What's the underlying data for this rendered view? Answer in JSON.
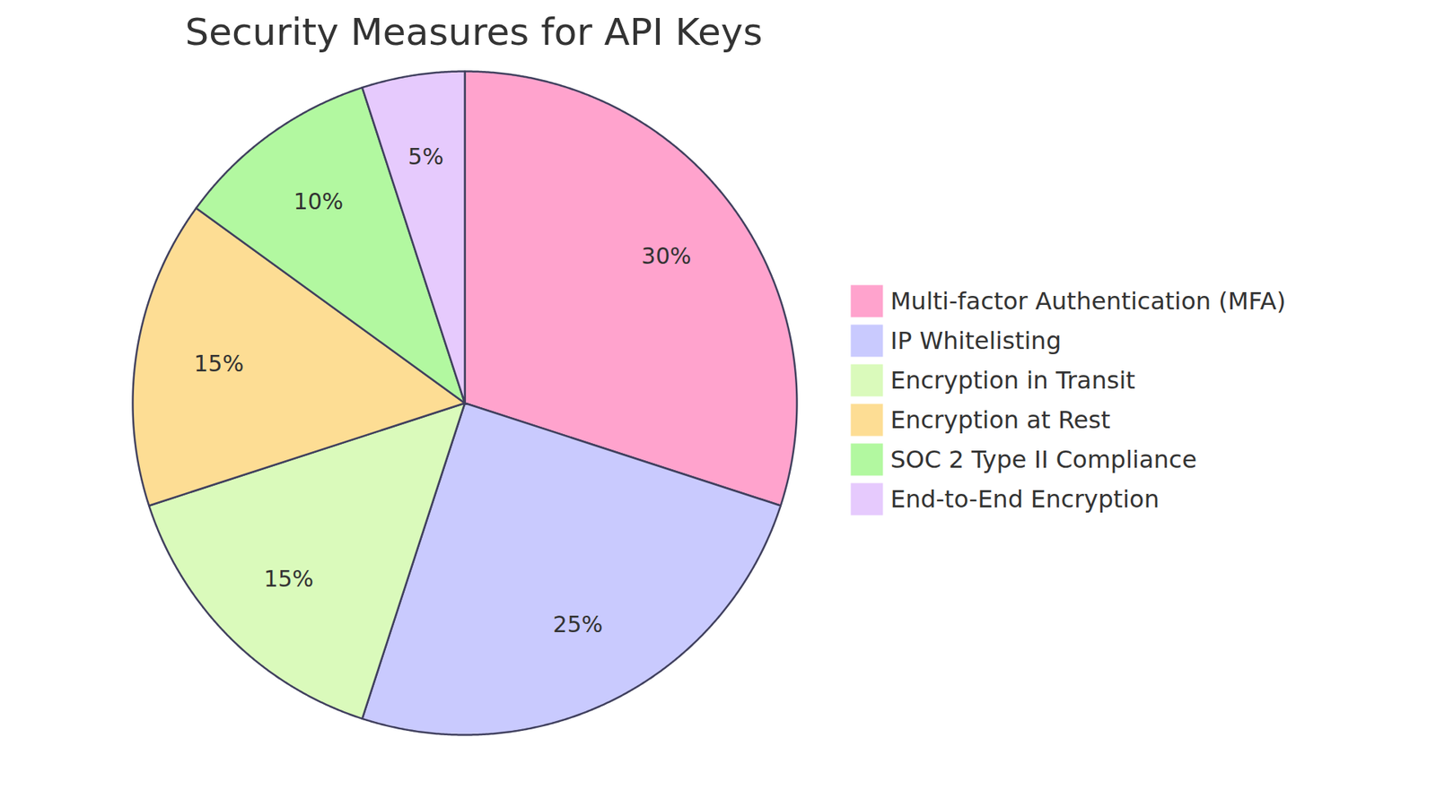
{
  "chart_data": {
    "type": "pie",
    "title": "Security Measures for API Keys",
    "categories": [
      "Multi-factor Authentication (MFA)",
      "IP Whitelisting",
      "Encryption in Transit",
      "Encryption at Rest",
      "SOC 2 Type II Compliance",
      "End-to-End Encryption"
    ],
    "values": [
      30,
      25,
      15,
      15,
      10,
      5
    ],
    "value_labels": [
      "30%",
      "25%",
      "15%",
      "15%",
      "10%",
      "5%"
    ],
    "colors": [
      "#ffa3cd",
      "#c9cafe",
      "#dafabb",
      "#fddd94",
      "#b2f8a0",
      "#e6cafd"
    ],
    "data_labels": true,
    "legend": "right"
  }
}
